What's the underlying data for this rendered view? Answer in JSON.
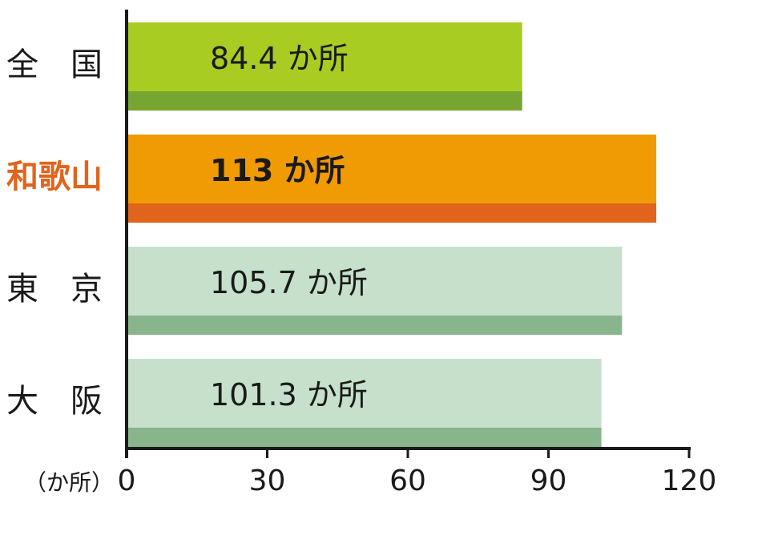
{
  "chart_data": {
    "type": "bar",
    "orientation": "horizontal",
    "categories": [
      "全　国",
      "和歌山",
      "東　京",
      "大　阪"
    ],
    "values": [
      84.4,
      113,
      105.7,
      101.3
    ],
    "value_labels": [
      "84.4 か所",
      "113 か所",
      "105.7 か所",
      "101.3 か所"
    ],
    "highlight_index": 1,
    "xlim": [
      0,
      120
    ],
    "xticks": [
      0,
      30,
      60,
      90,
      120
    ],
    "xtick_labels": [
      "0",
      "30",
      "60",
      "90",
      "120"
    ],
    "unit_label": "（か所）",
    "title": "",
    "xlabel": "",
    "ylabel": "",
    "grid": false,
    "colors": {
      "bars": [
        {
          "main": "#a8cc22",
          "shadow": "#77a532"
        },
        {
          "main": "#f09a04",
          "shadow": "#e0641c"
        },
        {
          "main": "#c6e0cb",
          "shadow": "#89b58d"
        },
        {
          "main": "#c6e0cb",
          "shadow": "#89b58d"
        }
      ],
      "highlight_text": "#e0641c",
      "text": "#1a1a1a",
      "axis": "#1a1a1a"
    }
  }
}
